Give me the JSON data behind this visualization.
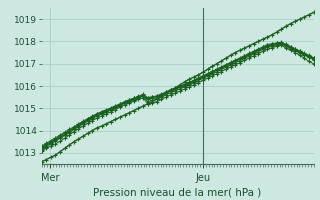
{
  "bg_color": "#cce8e0",
  "grid_color": "#a8c8c0",
  "line_color": "#1a6020",
  "vline_color": "#4a6a5a",
  "xlabel": "Pression niveau de la mer( hPa )",
  "ylim": [
    1012.5,
    1019.5
  ],
  "yticks": [
    1013,
    1014,
    1015,
    1016,
    1017,
    1018,
    1019
  ],
  "xlim": [
    0,
    96
  ],
  "xtick_labels": [
    "Mer",
    "Jeu"
  ],
  "xtick_positions": [
    3,
    57
  ],
  "vline_x": 57,
  "series": [
    [
      1012.6,
      1012.7,
      1012.8,
      1012.9,
      1013.05,
      1013.2,
      1013.35,
      1013.5,
      1013.62,
      1013.75,
      1013.88,
      1014.0,
      1014.12,
      1014.2,
      1014.3,
      1014.4,
      1014.5,
      1014.6,
      1014.7,
      1014.8,
      1014.9,
      1015.0,
      1015.1,
      1015.2,
      1015.3,
      1015.42,
      1015.55,
      1015.68,
      1015.8,
      1015.92,
      1016.05,
      1016.18,
      1016.3,
      1016.4,
      1016.5,
      1016.62,
      1016.75,
      1016.88,
      1017.0,
      1017.12,
      1017.25,
      1017.38,
      1017.5,
      1017.6,
      1017.7,
      1017.8,
      1017.9,
      1018.0,
      1018.1,
      1018.2,
      1018.3,
      1018.42,
      1018.55,
      1018.68,
      1018.8,
      1018.9,
      1019.0,
      1019.1,
      1019.2,
      1019.3
    ],
    [
      1013.1,
      1013.2,
      1013.3,
      1013.4,
      1013.52,
      1013.65,
      1013.8,
      1013.95,
      1014.08,
      1014.2,
      1014.32,
      1014.45,
      1014.56,
      1014.65,
      1014.75,
      1014.84,
      1014.94,
      1015.05,
      1015.15,
      1015.23,
      1015.32,
      1015.4,
      1015.48,
      1015.2,
      1015.25,
      1015.3,
      1015.4,
      1015.5,
      1015.6,
      1015.68,
      1015.77,
      1015.86,
      1015.96,
      1016.05,
      1016.15,
      1016.25,
      1016.35,
      1016.45,
      1016.55,
      1016.65,
      1016.75,
      1016.85,
      1016.95,
      1017.05,
      1017.15,
      1017.25,
      1017.35,
      1017.45,
      1017.55,
      1017.65,
      1017.72,
      1017.78,
      1017.83,
      1017.7,
      1017.6,
      1017.5,
      1017.38,
      1017.25,
      1017.1,
      1017.0
    ],
    [
      1013.15,
      1013.28,
      1013.4,
      1013.53,
      1013.65,
      1013.78,
      1013.9,
      1014.05,
      1014.18,
      1014.3,
      1014.42,
      1014.54,
      1014.65,
      1014.74,
      1014.83,
      1014.92,
      1015.01,
      1015.12,
      1015.22,
      1015.3,
      1015.38,
      1015.46,
      1015.55,
      1015.3,
      1015.35,
      1015.4,
      1015.5,
      1015.6,
      1015.7,
      1015.78,
      1015.87,
      1015.96,
      1016.06,
      1016.15,
      1016.24,
      1016.34,
      1016.44,
      1016.54,
      1016.64,
      1016.74,
      1016.84,
      1016.94,
      1017.04,
      1017.14,
      1017.24,
      1017.34,
      1017.44,
      1017.54,
      1017.64,
      1017.74,
      1017.8,
      1017.85,
      1017.9,
      1017.78,
      1017.68,
      1017.58,
      1017.48,
      1017.38,
      1017.28,
      1017.18
    ],
    [
      1013.2,
      1013.33,
      1013.45,
      1013.58,
      1013.7,
      1013.82,
      1013.95,
      1014.08,
      1014.22,
      1014.35,
      1014.47,
      1014.58,
      1014.69,
      1014.78,
      1014.87,
      1014.96,
      1015.05,
      1015.15,
      1015.25,
      1015.33,
      1015.41,
      1015.49,
      1015.58,
      1015.4,
      1015.44,
      1015.48,
      1015.57,
      1015.67,
      1015.77,
      1015.85,
      1015.94,
      1016.02,
      1016.11,
      1016.2,
      1016.3,
      1016.4,
      1016.5,
      1016.6,
      1016.7,
      1016.8,
      1016.9,
      1017.0,
      1017.1,
      1017.2,
      1017.3,
      1017.4,
      1017.5,
      1017.6,
      1017.7,
      1017.8,
      1017.85,
      1017.9,
      1017.93,
      1017.82,
      1017.72,
      1017.62,
      1017.52,
      1017.42,
      1017.32,
      1017.22
    ],
    [
      1013.25,
      1013.38,
      1013.5,
      1013.62,
      1013.75,
      1013.87,
      1014.0,
      1014.12,
      1014.26,
      1014.38,
      1014.5,
      1014.62,
      1014.73,
      1014.82,
      1014.9,
      1014.99,
      1015.08,
      1015.17,
      1015.27,
      1015.35,
      1015.44,
      1015.52,
      1015.6,
      1015.45,
      1015.49,
      1015.53,
      1015.61,
      1015.71,
      1015.81,
      1015.88,
      1015.97,
      1016.05,
      1016.14,
      1016.23,
      1016.33,
      1016.43,
      1016.53,
      1016.63,
      1016.73,
      1016.83,
      1016.93,
      1017.03,
      1017.13,
      1017.23,
      1017.33,
      1017.43,
      1017.53,
      1017.63,
      1017.73,
      1017.83,
      1017.88,
      1017.92,
      1017.95,
      1017.85,
      1017.75,
      1017.65,
      1017.55,
      1017.45,
      1017.35,
      1017.25
    ],
    [
      1013.3,
      1013.43,
      1013.55,
      1013.67,
      1013.8,
      1013.92,
      1014.05,
      1014.17,
      1014.3,
      1014.42,
      1014.54,
      1014.65,
      1014.76,
      1014.85,
      1014.93,
      1015.02,
      1015.11,
      1015.2,
      1015.3,
      1015.38,
      1015.46,
      1015.54,
      1015.62,
      1015.48,
      1015.52,
      1015.56,
      1015.64,
      1015.74,
      1015.84,
      1015.91,
      1016.0,
      1016.08,
      1016.17,
      1016.26,
      1016.36,
      1016.46,
      1016.56,
      1016.66,
      1016.76,
      1016.86,
      1016.96,
      1017.06,
      1017.16,
      1017.26,
      1017.36,
      1017.46,
      1017.56,
      1017.66,
      1017.76,
      1017.86,
      1017.9,
      1017.93,
      1017.96,
      1017.87,
      1017.77,
      1017.67,
      1017.57,
      1017.47,
      1017.37,
      1017.27
    ]
  ],
  "main_series_idx": 0,
  "n_major_x": 8,
  "minor_x_count": 6
}
